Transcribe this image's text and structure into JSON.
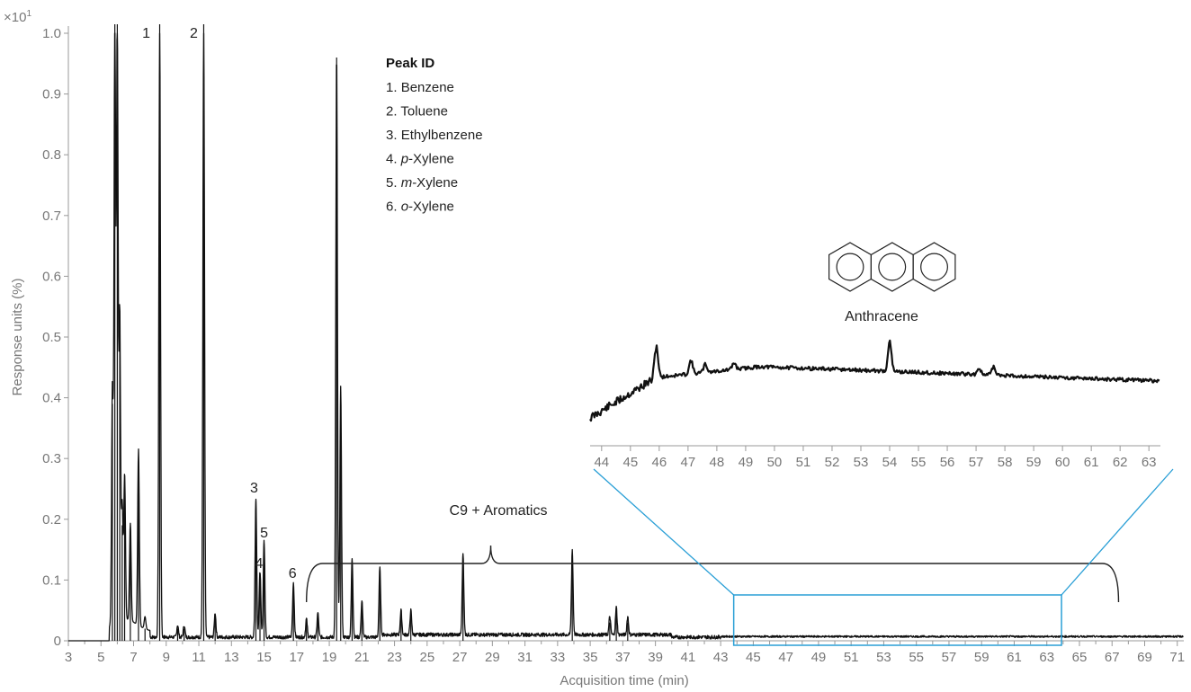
{
  "chart_data": {
    "type": "line",
    "multiplier_label": "×10",
    "multiplier_exp": "1",
    "xlabel": "Acquisition time (min)",
    "ylabel": "Response units (%)",
    "xlim": [
      3,
      71.4
    ],
    "ylim": [
      0,
      1.0
    ],
    "x_ticks": [
      "3",
      "5",
      "7",
      "9",
      "11",
      "13",
      "15",
      "17",
      "19",
      "21",
      "23",
      "25",
      "27",
      "29",
      "31",
      "33",
      "35",
      "37",
      "39",
      "41",
      "43",
      "45",
      "47",
      "49",
      "51",
      "53",
      "55",
      "57",
      "59",
      "61",
      "63",
      "65",
      "67",
      "69",
      "71"
    ],
    "y_ticks": [
      "0",
      "0.1",
      "0.2",
      "0.3",
      "0.4",
      "0.5",
      "0.6",
      "0.7",
      "0.8",
      "0.9",
      "1.0"
    ],
    "peaks": [
      {
        "x": 5.7,
        "y": 0.39
      },
      {
        "x": 5.85,
        "y": 1.0
      },
      {
        "x": 6.0,
        "y": 1.0
      },
      {
        "x": 6.15,
        "y": 0.51
      },
      {
        "x": 6.3,
        "y": 0.19
      },
      {
        "x": 6.45,
        "y": 0.24
      },
      {
        "x": 6.8,
        "y": 0.16
      },
      {
        "x": 7.3,
        "y": 0.29
      },
      {
        "x": 7.7,
        "y": 0.02
      },
      {
        "x": 8.6,
        "y": 1.0
      },
      {
        "x": 9.7,
        "y": 0.02
      },
      {
        "x": 10.1,
        "y": 0.02
      },
      {
        "x": 11.3,
        "y": 1.0
      },
      {
        "x": 12.0,
        "y": 0.04
      },
      {
        "x": 14.5,
        "y": 0.23
      },
      {
        "x": 14.75,
        "y": 0.11
      },
      {
        "x": 15.0,
        "y": 0.16
      },
      {
        "x": 16.8,
        "y": 0.09
      },
      {
        "x": 17.6,
        "y": 0.03
      },
      {
        "x": 18.3,
        "y": 0.04
      },
      {
        "x": 19.45,
        "y": 0.96
      },
      {
        "x": 19.7,
        "y": 0.41
      },
      {
        "x": 20.4,
        "y": 0.13
      },
      {
        "x": 21.0,
        "y": 0.06
      },
      {
        "x": 22.1,
        "y": 0.11
      },
      {
        "x": 23.4,
        "y": 0.04
      },
      {
        "x": 24.0,
        "y": 0.04
      },
      {
        "x": 27.2,
        "y": 0.135
      },
      {
        "x": 33.9,
        "y": 0.14
      },
      {
        "x": 36.2,
        "y": 0.03
      },
      {
        "x": 36.6,
        "y": 0.045
      },
      {
        "x": 37.3,
        "y": 0.03
      }
    ],
    "peak_labels": [
      {
        "text": "1",
        "x": 8.6
      },
      {
        "text": "2",
        "x": 11.3
      },
      {
        "text": "3",
        "x": 14.5
      },
      {
        "text": "4",
        "x": 14.75
      },
      {
        "text": "5",
        "x": 15.0
      },
      {
        "text": "6",
        "x": 16.8
      }
    ],
    "annotation": "C9 + Aromatics",
    "legend": {
      "title": "Peak ID",
      "items": [
        {
          "num": "1.",
          "pre": "",
          "italic": "",
          "post": "Benzene"
        },
        {
          "num": "2.",
          "pre": "",
          "italic": "",
          "post": "Toluene"
        },
        {
          "num": "3.",
          "pre": "",
          "italic": "",
          "post": "Ethylbenzene"
        },
        {
          "num": "4.",
          "pre": "",
          "italic": "p",
          "post": "-Xylene"
        },
        {
          "num": "5.",
          "pre": "",
          "italic": "m",
          "post": "-Xylene"
        },
        {
          "num": "6.",
          "pre": "",
          "italic": "o",
          "post": "-Xylene"
        }
      ]
    },
    "inset": {
      "label": "Anthracene",
      "xlim": [
        43.6,
        63.4
      ],
      "x_ticks": [
        "44",
        "45",
        "46",
        "47",
        "48",
        "49",
        "50",
        "51",
        "52",
        "53",
        "54",
        "55",
        "56",
        "57",
        "58",
        "59",
        "60",
        "61",
        "62",
        "63"
      ],
      "zoom_region": [
        43.8,
        63.9
      ],
      "peaks": [
        {
          "x": 45.9,
          "h": 0.6
        },
        {
          "x": 47.1,
          "h": 0.25
        },
        {
          "x": 47.6,
          "h": 0.15
        },
        {
          "x": 48.6,
          "h": 0.12
        },
        {
          "x": 54.0,
          "h": 0.55
        },
        {
          "x": 57.1,
          "h": 0.12
        },
        {
          "x": 57.6,
          "h": 0.15
        }
      ]
    },
    "colors": {
      "trace": "#111111",
      "zoom": "#2a9fd6",
      "axis": "#999999"
    }
  }
}
